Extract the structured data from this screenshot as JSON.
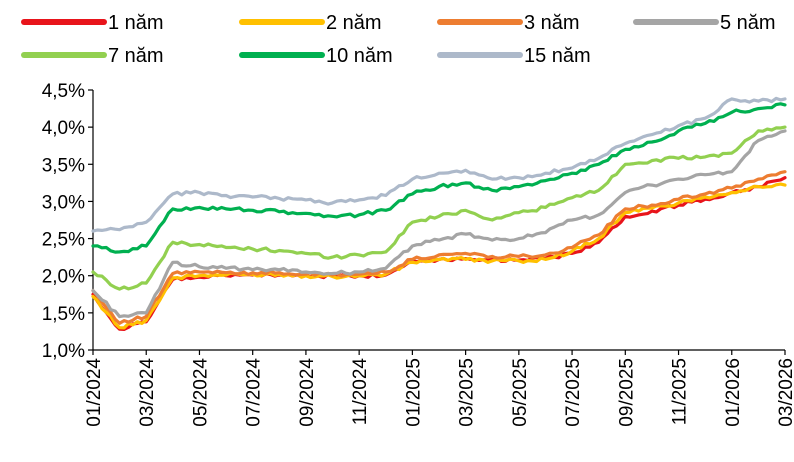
{
  "chart_data": {
    "type": "line",
    "title": "",
    "xlabel": "",
    "ylabel": "",
    "ylim": [
      1.0,
      4.5
    ],
    "y_ticks": [
      "1,0%",
      "1,5%",
      "2,0%",
      "2,5%",
      "3,0%",
      "3,5%",
      "4,0%",
      "4,5%"
    ],
    "y_tick_values": [
      1.0,
      1.5,
      2.0,
      2.5,
      3.0,
      3.5,
      4.0,
      4.5
    ],
    "x_ticks": [
      "01/2024",
      "03/2024",
      "05/2024",
      "07/2024",
      "09/2024",
      "11/2024",
      "01/2025",
      "03/2025",
      "05/2025",
      "07/2025",
      "09/2025",
      "11/2025",
      "01/2026",
      "03/2026"
    ],
    "x_range": [
      "01/2024",
      "03/2026"
    ],
    "grid": false,
    "legend_position": "top",
    "x": [
      "01/2024",
      "02/2024",
      "03/2024",
      "04/2024",
      "05/2024",
      "06/2024",
      "07/2024",
      "08/2024",
      "09/2024",
      "10/2024",
      "11/2024",
      "12/2024",
      "01/2025",
      "02/2025",
      "03/2025",
      "04/2025",
      "05/2025",
      "06/2025",
      "07/2025",
      "08/2025",
      "09/2025",
      "10/2025",
      "11/2025",
      "12/2025",
      "01/2026",
      "02/2026",
      "03/2026"
    ],
    "series": [
      {
        "name": "1 năm",
        "color": "#e8141b",
        "values": [
          1.75,
          1.28,
          1.38,
          1.95,
          1.98,
          2.0,
          2.01,
          2.01,
          2.0,
          2.0,
          2.0,
          2.01,
          2.2,
          2.22,
          2.23,
          2.22,
          2.21,
          2.23,
          2.3,
          2.45,
          2.8,
          2.87,
          2.95,
          3.03,
          3.12,
          3.2,
          3.32
        ]
      },
      {
        "name": "2 năm",
        "color": "#ffc000",
        "values": [
          1.72,
          1.3,
          1.4,
          1.97,
          2.0,
          2.01,
          2.02,
          2.02,
          2.0,
          1.99,
          2.0,
          2.02,
          2.18,
          2.22,
          2.22,
          2.2,
          2.2,
          2.22,
          2.33,
          2.5,
          2.85,
          2.91,
          2.98,
          3.06,
          3.12,
          3.2,
          3.22
        ]
      },
      {
        "name": "3 năm",
        "color": "#ed7d31",
        "values": [
          1.8,
          1.36,
          1.45,
          2.03,
          2.05,
          2.04,
          2.04,
          2.04,
          2.02,
          2.01,
          2.02,
          2.05,
          2.22,
          2.28,
          2.3,
          2.26,
          2.26,
          2.28,
          2.38,
          2.55,
          2.9,
          2.95,
          3.03,
          3.1,
          3.18,
          3.3,
          3.4
        ]
      },
      {
        "name": "5 năm",
        "color": "#a5a5a5",
        "values": [
          1.8,
          1.45,
          1.5,
          2.18,
          2.12,
          2.1,
          2.08,
          2.08,
          2.05,
          2.03,
          2.05,
          2.1,
          2.4,
          2.48,
          2.56,
          2.48,
          2.5,
          2.58,
          2.75,
          2.82,
          3.12,
          3.22,
          3.3,
          3.36,
          3.4,
          3.82,
          3.95
        ]
      },
      {
        "name": "7 năm",
        "color": "#92d050",
        "values": [
          2.05,
          1.82,
          1.9,
          2.45,
          2.42,
          2.38,
          2.36,
          2.34,
          2.3,
          2.25,
          2.28,
          2.32,
          2.72,
          2.8,
          2.88,
          2.75,
          2.85,
          2.92,
          3.05,
          3.15,
          3.5,
          3.55,
          3.58,
          3.6,
          3.65,
          3.95,
          4.0
        ]
      },
      {
        "name": "10 năm",
        "color": "#00b050",
        "values": [
          2.4,
          2.32,
          2.4,
          2.9,
          2.92,
          2.9,
          2.88,
          2.86,
          2.84,
          2.8,
          2.82,
          2.88,
          3.1,
          3.2,
          3.25,
          3.15,
          3.2,
          3.28,
          3.38,
          3.5,
          3.7,
          3.8,
          3.95,
          4.05,
          4.2,
          4.25,
          4.3
        ]
      },
      {
        "name": "15 năm",
        "color": "#adb9ca",
        "values": [
          2.6,
          2.62,
          2.72,
          3.1,
          3.12,
          3.08,
          3.06,
          3.04,
          3.02,
          2.98,
          3.02,
          3.08,
          3.3,
          3.38,
          3.42,
          3.3,
          3.32,
          3.38,
          3.45,
          3.58,
          3.78,
          3.9,
          4.02,
          4.12,
          4.38,
          4.35,
          4.38
        ]
      }
    ]
  }
}
